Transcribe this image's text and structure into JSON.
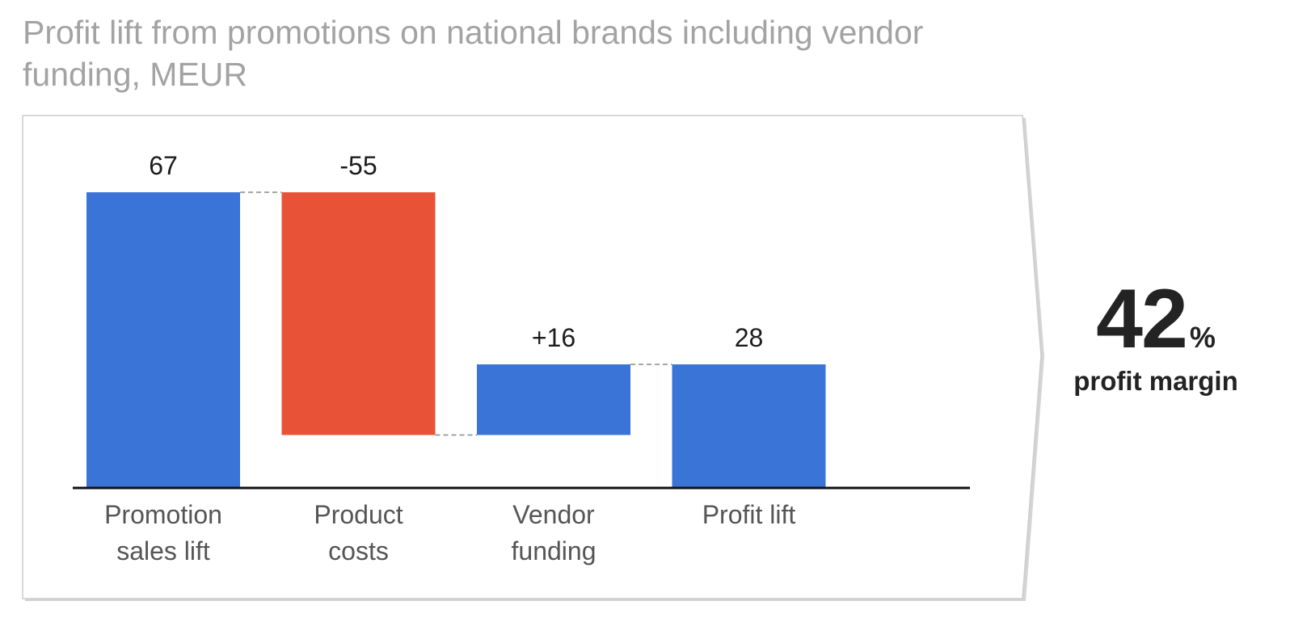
{
  "chart_data": {
    "type": "bar",
    "subtype": "waterfall",
    "title": "Profit lift from promotions on national brands including vendor funding, MEUR",
    "categories": [
      "Promotion\nsales lift",
      "Product\ncosts",
      "Vendor\nfunding",
      "Profit lift"
    ],
    "values": [
      67,
      -55,
      16,
      28
    ],
    "data_labels": [
      "67",
      "-55",
      "+16",
      "28"
    ],
    "bar_kinds": [
      "total",
      "delta",
      "delta",
      "total"
    ],
    "colors": {
      "positive": "#3a74d6",
      "negative": "#e85236",
      "baseline": "#111111",
      "connector": "#888888"
    },
    "ylim": [
      0,
      67
    ],
    "grid": false,
    "legend": "none",
    "xlabel": "",
    "ylabel": ""
  },
  "kpi": {
    "value": "42",
    "unit": "%",
    "label": "profit margin"
  }
}
